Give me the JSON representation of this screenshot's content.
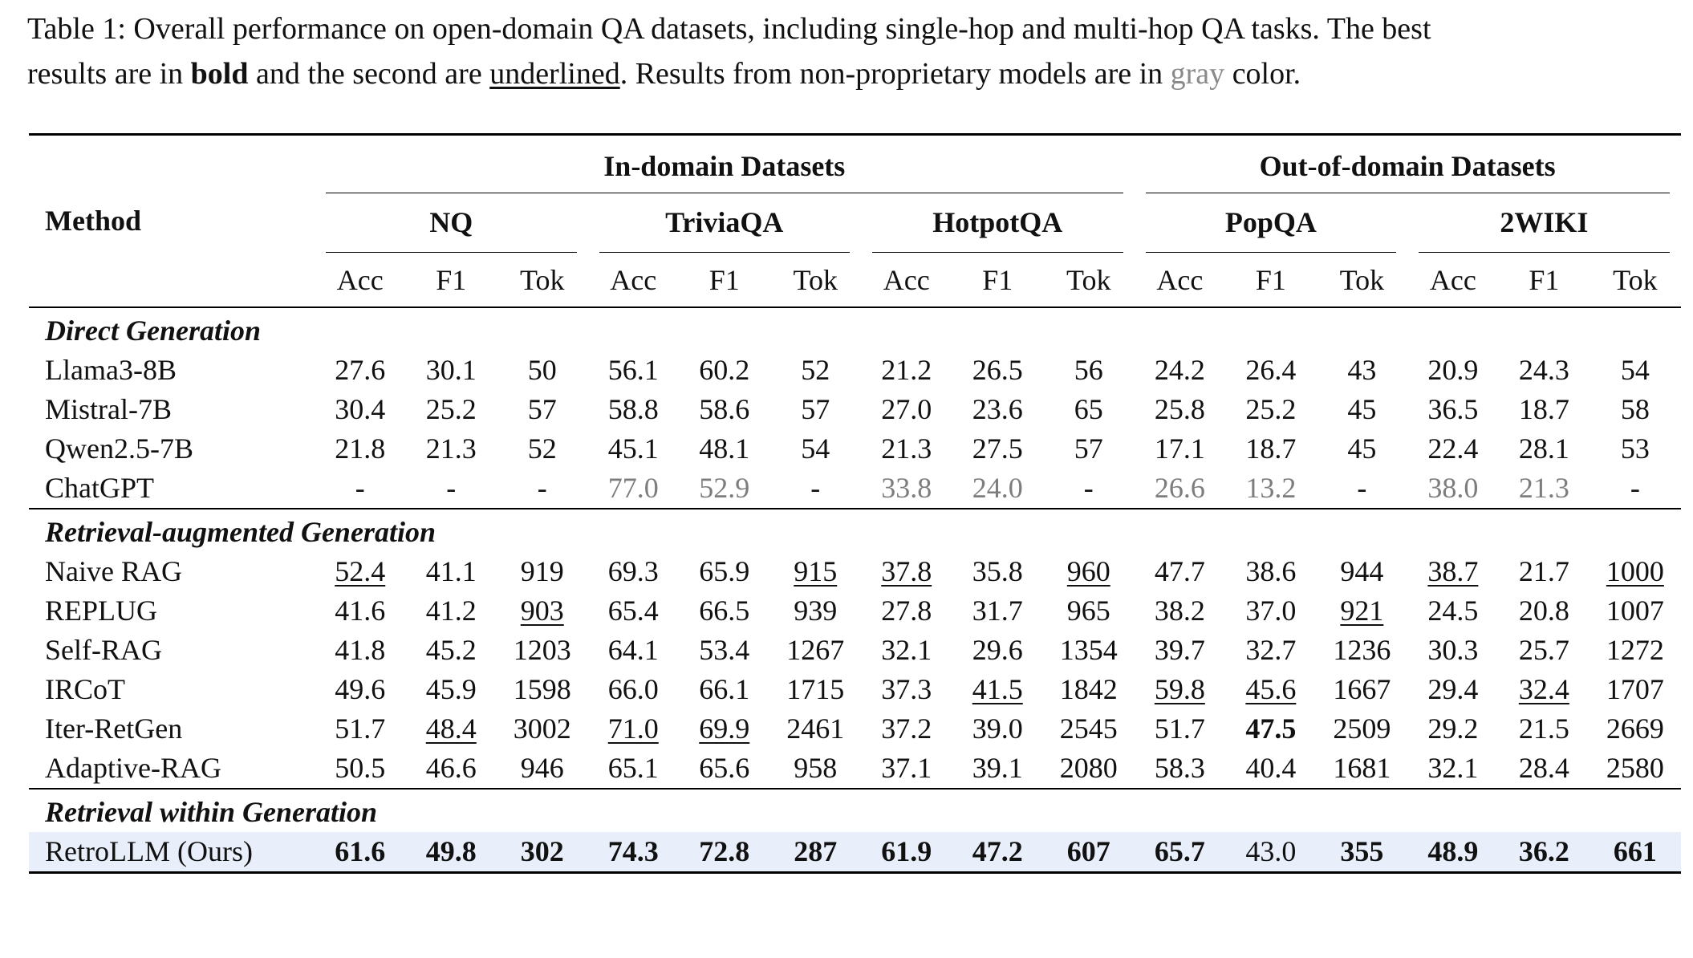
{
  "caption": {
    "line1": "Table 1: Overall performance on open-domain QA datasets, including single-hop and multi-hop QA tasks. The best",
    "line2_pre": "results are in ",
    "bold_word": "bold",
    "line2_mid": " and the second are ",
    "underline_word": "underlined",
    "line2_mid2": ". Results from non-proprietary models are in ",
    "gray_word": "gray",
    "line2_post": " color."
  },
  "header": {
    "method": "Method",
    "groups": [
      "In-domain Datasets",
      "Out-of-domain Datasets"
    ],
    "datasets": [
      "NQ",
      "TriviaQA",
      "HotpotQA",
      "PopQA",
      "2WIKI"
    ],
    "metrics": [
      "Acc",
      "F1",
      "Tok"
    ]
  },
  "sections": [
    {
      "title": "Direct Generation",
      "rows": [
        {
          "method": "Llama3-8B",
          "cells": [
            [
              "27.6",
              ""
            ],
            [
              "30.1",
              ""
            ],
            [
              "50",
              ""
            ],
            [
              "56.1",
              ""
            ],
            [
              "60.2",
              ""
            ],
            [
              "52",
              ""
            ],
            [
              "21.2",
              ""
            ],
            [
              "26.5",
              ""
            ],
            [
              "56",
              ""
            ],
            [
              "24.2",
              ""
            ],
            [
              "26.4",
              ""
            ],
            [
              "43",
              ""
            ],
            [
              "20.9",
              ""
            ],
            [
              "24.3",
              ""
            ],
            [
              "54",
              ""
            ]
          ]
        },
        {
          "method": "Mistral-7B",
          "cells": [
            [
              "30.4",
              ""
            ],
            [
              "25.2",
              ""
            ],
            [
              "57",
              ""
            ],
            [
              "58.8",
              ""
            ],
            [
              "58.6",
              ""
            ],
            [
              "57",
              ""
            ],
            [
              "27.0",
              ""
            ],
            [
              "23.6",
              ""
            ],
            [
              "65",
              ""
            ],
            [
              "25.8",
              ""
            ],
            [
              "25.2",
              ""
            ],
            [
              "45",
              ""
            ],
            [
              "36.5",
              ""
            ],
            [
              "18.7",
              ""
            ],
            [
              "58",
              ""
            ]
          ]
        },
        {
          "method": "Qwen2.5-7B",
          "cells": [
            [
              "21.8",
              ""
            ],
            [
              "21.3",
              ""
            ],
            [
              "52",
              ""
            ],
            [
              "45.1",
              ""
            ],
            [
              "48.1",
              ""
            ],
            [
              "54",
              ""
            ],
            [
              "21.3",
              ""
            ],
            [
              "27.5",
              ""
            ],
            [
              "57",
              ""
            ],
            [
              "17.1",
              ""
            ],
            [
              "18.7",
              ""
            ],
            [
              "45",
              ""
            ],
            [
              "22.4",
              ""
            ],
            [
              "28.1",
              ""
            ],
            [
              "53",
              ""
            ]
          ]
        },
        {
          "method": "ChatGPT",
          "cells": [
            [
              "-",
              ""
            ],
            [
              "-",
              ""
            ],
            [
              "-",
              ""
            ],
            [
              "77.0",
              "g"
            ],
            [
              "52.9",
              "g"
            ],
            [
              "-",
              ""
            ],
            [
              "33.8",
              "g"
            ],
            [
              "24.0",
              "g"
            ],
            [
              "-",
              ""
            ],
            [
              "26.6",
              "g"
            ],
            [
              "13.2",
              "g"
            ],
            [
              "-",
              ""
            ],
            [
              "38.0",
              "g"
            ],
            [
              "21.3",
              "g"
            ],
            [
              "-",
              ""
            ]
          ]
        }
      ]
    },
    {
      "title": "Retrieval-augmented Generation",
      "rows": [
        {
          "method": "Naive RAG",
          "cells": [
            [
              "52.4",
              "u"
            ],
            [
              "41.1",
              ""
            ],
            [
              "919",
              ""
            ],
            [
              "69.3",
              ""
            ],
            [
              "65.9",
              ""
            ],
            [
              "915",
              "u"
            ],
            [
              "37.8",
              "u"
            ],
            [
              "35.8",
              ""
            ],
            [
              "960",
              "u"
            ],
            [
              "47.7",
              ""
            ],
            [
              "38.6",
              ""
            ],
            [
              "944",
              ""
            ],
            [
              "38.7",
              "u"
            ],
            [
              "21.7",
              ""
            ],
            [
              "1000",
              "u"
            ]
          ]
        },
        {
          "method": "REPLUG",
          "cells": [
            [
              "41.6",
              ""
            ],
            [
              "41.2",
              ""
            ],
            [
              "903",
              "u"
            ],
            [
              "65.4",
              ""
            ],
            [
              "66.5",
              ""
            ],
            [
              "939",
              ""
            ],
            [
              "27.8",
              ""
            ],
            [
              "31.7",
              ""
            ],
            [
              "965",
              ""
            ],
            [
              "38.2",
              ""
            ],
            [
              "37.0",
              ""
            ],
            [
              "921",
              "u"
            ],
            [
              "24.5",
              ""
            ],
            [
              "20.8",
              ""
            ],
            [
              "1007",
              ""
            ]
          ]
        },
        {
          "method": "Self-RAG",
          "cells": [
            [
              "41.8",
              ""
            ],
            [
              "45.2",
              ""
            ],
            [
              "1203",
              ""
            ],
            [
              "64.1",
              ""
            ],
            [
              "53.4",
              ""
            ],
            [
              "1267",
              ""
            ],
            [
              "32.1",
              ""
            ],
            [
              "29.6",
              ""
            ],
            [
              "1354",
              ""
            ],
            [
              "39.7",
              ""
            ],
            [
              "32.7",
              ""
            ],
            [
              "1236",
              ""
            ],
            [
              "30.3",
              ""
            ],
            [
              "25.7",
              ""
            ],
            [
              "1272",
              ""
            ]
          ]
        },
        {
          "method": "IRCoT",
          "cells": [
            [
              "49.6",
              ""
            ],
            [
              "45.9",
              ""
            ],
            [
              "1598",
              ""
            ],
            [
              "66.0",
              ""
            ],
            [
              "66.1",
              ""
            ],
            [
              "1715",
              ""
            ],
            [
              "37.3",
              ""
            ],
            [
              "41.5",
              "u"
            ],
            [
              "1842",
              ""
            ],
            [
              "59.8",
              "u"
            ],
            [
              "45.6",
              "u"
            ],
            [
              "1667",
              ""
            ],
            [
              "29.4",
              ""
            ],
            [
              "32.4",
              "u"
            ],
            [
              "1707",
              ""
            ]
          ]
        },
        {
          "method": "Iter-RetGen",
          "cells": [
            [
              "51.7",
              ""
            ],
            [
              "48.4",
              "u"
            ],
            [
              "3002",
              ""
            ],
            [
              "71.0",
              "u"
            ],
            [
              "69.9",
              "u"
            ],
            [
              "2461",
              ""
            ],
            [
              "37.2",
              ""
            ],
            [
              "39.0",
              ""
            ],
            [
              "2545",
              ""
            ],
            [
              "51.7",
              ""
            ],
            [
              "47.5",
              "b"
            ],
            [
              "2509",
              ""
            ],
            [
              "29.2",
              ""
            ],
            [
              "21.5",
              ""
            ],
            [
              "2669",
              ""
            ]
          ]
        },
        {
          "method": "Adaptive-RAG",
          "cells": [
            [
              "50.5",
              ""
            ],
            [
              "46.6",
              ""
            ],
            [
              "946",
              ""
            ],
            [
              "65.1",
              ""
            ],
            [
              "65.6",
              ""
            ],
            [
              "958",
              ""
            ],
            [
              "37.1",
              ""
            ],
            [
              "39.1",
              ""
            ],
            [
              "2080",
              ""
            ],
            [
              "58.3",
              ""
            ],
            [
              "40.4",
              ""
            ],
            [
              "1681",
              ""
            ],
            [
              "32.1",
              ""
            ],
            [
              "28.4",
              ""
            ],
            [
              "2580",
              ""
            ]
          ]
        }
      ]
    },
    {
      "title": "Retrieval within Generation",
      "rows": [
        {
          "method": "RetroLLM (Ours)",
          "ours": true,
          "cells": [
            [
              "61.6",
              "b"
            ],
            [
              "49.8",
              "b"
            ],
            [
              "302",
              "b"
            ],
            [
              "74.3",
              "b"
            ],
            [
              "72.8",
              "b"
            ],
            [
              "287",
              "b"
            ],
            [
              "61.9",
              "b"
            ],
            [
              "47.2",
              "b"
            ],
            [
              "607",
              "b"
            ],
            [
              "65.7",
              "b"
            ],
            [
              "43.0",
              ""
            ],
            [
              "355",
              "b"
            ],
            [
              "48.9",
              "b"
            ],
            [
              "36.2",
              "b"
            ],
            [
              "661",
              "b"
            ]
          ]
        }
      ]
    }
  ]
}
